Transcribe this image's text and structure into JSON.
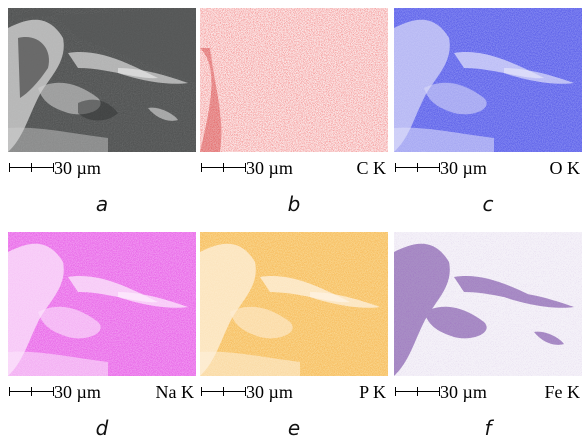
{
  "colors": {
    "a": "#3f4343",
    "b": "#e02020",
    "c": "#4a4ee8",
    "d": "#e85ae8",
    "e": "#f7b855",
    "f": "#5a2a8a"
  },
  "panels": [
    {
      "label": "a",
      "scale": "30 µm",
      "element": ""
    },
    {
      "label": "b",
      "scale": "30 µm",
      "element": "C K"
    },
    {
      "label": "c",
      "scale": "30 µm",
      "element": "O K"
    },
    {
      "label": "d",
      "scale": "30 µm",
      "element": "Na K"
    },
    {
      "label": "e",
      "scale": "30 µm",
      "element": "P K"
    },
    {
      "label": "f",
      "scale": "30 µm",
      "element": "Fe K"
    }
  ]
}
